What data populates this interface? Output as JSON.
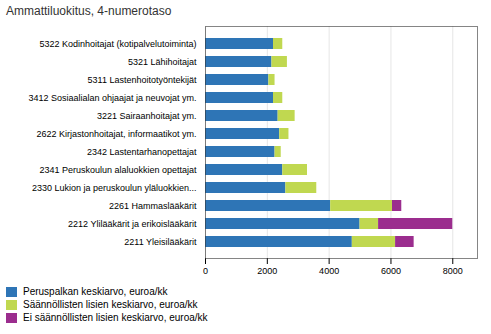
{
  "chart_data": {
    "type": "bar",
    "orientation": "horizontal",
    "stacked": true,
    "title": "Ammattiluokitus, 4-numerotaso",
    "categories": [
      "2211 Yleisilääkärit",
      "2212 Ylilääkärit ja erikoislääkärit",
      "2261 Hammaslääkärit",
      "2330 Lukion ja peruskoulun yläluokkien...",
      "2341 Peruskoulun alaluokkien opettajat",
      "2342 Lastentarhanopettajat",
      "2622 Kirjastonhoitajat, informaatikot ym.",
      "3221 Sairaanhoitajat ym.",
      "3412 Sosiaalialan ohjaajat ja neuvojat ym.",
      "5311 Lastenhoitotyöntekijät",
      "5321 Lähihoitajat",
      "5322 Kodinhoitajat (kotipalvelutoiminta)"
    ],
    "series": [
      {
        "name": "Peruspalkan keskiarvo, euroa/kk",
        "color": "#2E75B6",
        "values": [
          4750,
          5000,
          4050,
          2600,
          2500,
          2250,
          2400,
          2350,
          2200,
          2050,
          2150,
          2200
        ]
      },
      {
        "name": "Säännöllisten lisien keskiarvo, euroa/kk",
        "color": "#C0D850",
        "values": [
          1400,
          600,
          2000,
          1000,
          800,
          200,
          300,
          550,
          300,
          200,
          500,
          300
        ]
      },
      {
        "name": "Ei säännöllisten lisien keskiarvo, euroa/kk",
        "color": "#9B2D8E",
        "values": [
          600,
          2400,
          300,
          0,
          0,
          0,
          0,
          0,
          0,
          0,
          0,
          0
        ]
      }
    ],
    "xlim": [
      0,
      8800
    ],
    "xticks": [
      0,
      2000,
      4000,
      6000,
      8000
    ],
    "grid": true,
    "legend": "bottom"
  }
}
